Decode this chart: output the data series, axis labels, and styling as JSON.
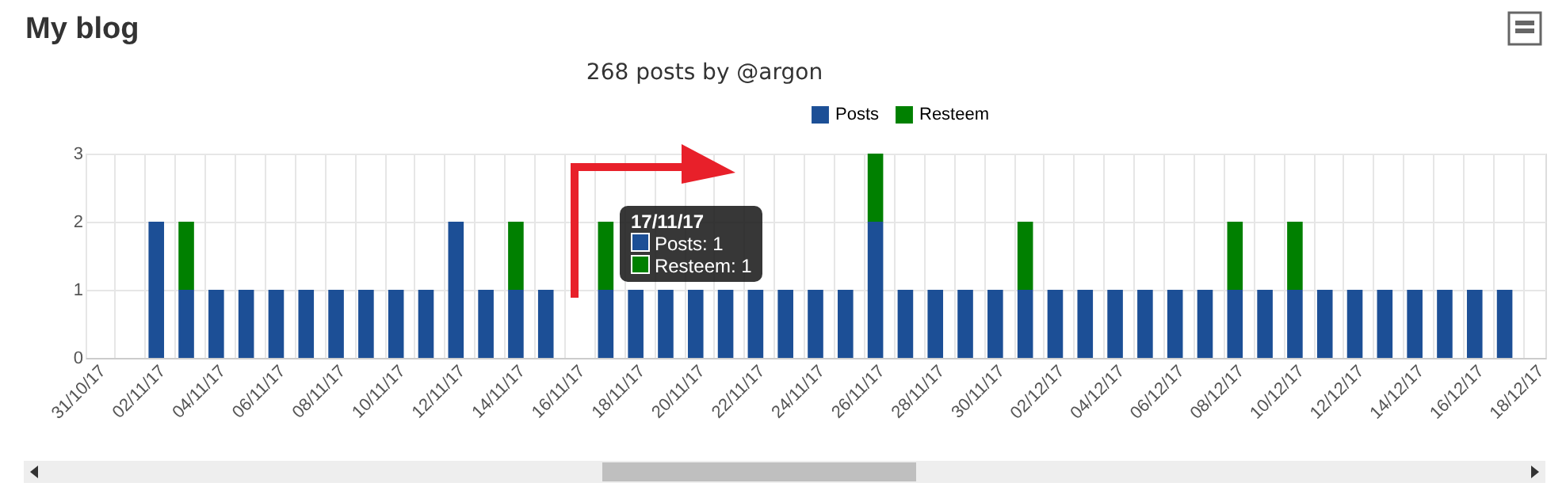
{
  "chart_data": {
    "type": "bar",
    "title": "My blog",
    "subtitle": "268 posts by @argon",
    "categories": [
      "31/10/17",
      null,
      "02/11/17",
      null,
      "04/11/17",
      null,
      "06/11/17",
      null,
      "08/11/17",
      null,
      "10/11/17",
      null,
      "12/11/17",
      null,
      "14/11/17",
      null,
      "16/11/17",
      null,
      "18/11/17",
      null,
      "20/11/17",
      null,
      "22/11/17",
      null,
      "24/11/17",
      null,
      "26/11/17",
      null,
      "28/11/17",
      null,
      "30/11/17",
      null,
      "02/12/17",
      null,
      "04/12/17",
      null,
      "06/12/17",
      null,
      "08/12/17",
      null,
      "10/12/17",
      null,
      "12/12/17",
      null,
      "14/12/17",
      null,
      "16/12/17",
      null,
      "18/12/17"
    ],
    "series": [
      {
        "name": "Posts",
        "color": "#1c4f96",
        "values": [
          0,
          0,
          2,
          1,
          1,
          1,
          1,
          1,
          1,
          1,
          1,
          1,
          2,
          1,
          1,
          1,
          0,
          1,
          1,
          1,
          1,
          1,
          1,
          1,
          1,
          1,
          2,
          1,
          1,
          1,
          1,
          1,
          1,
          1,
          1,
          1,
          1,
          1,
          1,
          1,
          1,
          1,
          1,
          1,
          1,
          1,
          1,
          1,
          null
        ]
      },
      {
        "name": "Resteem",
        "color": "#008000",
        "values": [
          0,
          0,
          0,
          1,
          0,
          0,
          0,
          0,
          0,
          0,
          0,
          0,
          0,
          0,
          1,
          0,
          0,
          1,
          0,
          0,
          0,
          0,
          0,
          0,
          0,
          0,
          1,
          0,
          0,
          0,
          0,
          1,
          0,
          0,
          0,
          0,
          0,
          0,
          1,
          0,
          1,
          0,
          0,
          0,
          0,
          0,
          0,
          0,
          null
        ]
      }
    ],
    "stacked": true,
    "ylim": [
      0,
      3
    ],
    "yticks": [
      0,
      1,
      2,
      3
    ],
    "grid": true,
    "legend": "top",
    "annotations": [
      "17/11/17",
      "Posts: 1",
      "Resteem: 1"
    ]
  }
}
